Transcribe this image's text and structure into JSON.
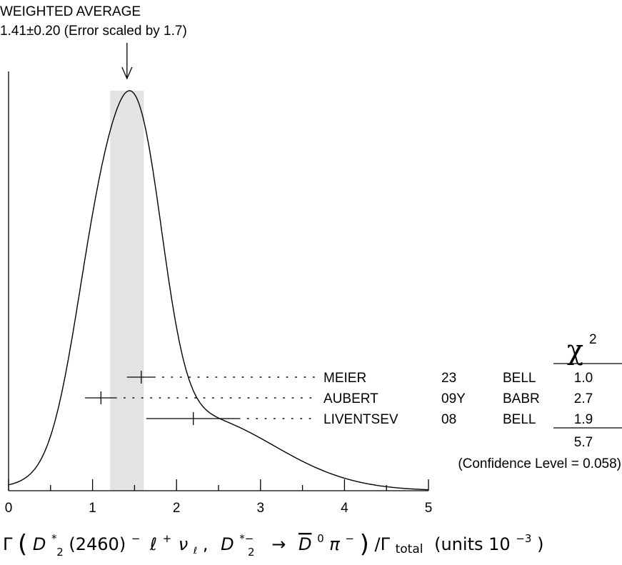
{
  "chart_data": {
    "type": "ideogram",
    "title": "WEIGHTED AVERAGE",
    "subtitle": "1.41±0.20 (Error scaled by 1.7)",
    "average": {
      "value": 1.41,
      "error": 0.2,
      "scale_factor": 1.7
    },
    "band": [
      1.21,
      1.61
    ],
    "xlim": [
      0,
      5
    ],
    "ticks": [
      0,
      1,
      2,
      3,
      4,
      5
    ],
    "tick_labels": [
      "0",
      "1",
      "2",
      "3",
      "4",
      "5"
    ],
    "xlabel": {
      "prefix": "Γ",
      "d2star": "D",
      "sub2": "2",
      "sup_star": "*",
      "mass": "(2460)",
      "minus": "−",
      "ell": "ℓ",
      "plus": "+",
      "nu": "ν",
      "sub_ell": "ℓ",
      "comma": ",",
      "d2star_b": "D",
      "sub2_b": "2",
      "sup_b": "*−",
      "arrow": "→",
      "dbar": "D",
      "sup0": "0",
      "pi": "π",
      "sup_minus": "−",
      "slash": "/Γ",
      "total": "total",
      "units": "(units 10",
      "units_exp": "−3",
      "units_close": ")"
    },
    "chi2_header": "χ",
    "chi2_sup": "2",
    "measurements": [
      {
        "author": "MEIER",
        "year": "23",
        "experiment": "BELL",
        "value": 1.58,
        "error": 0.17,
        "chi2": "1.0"
      },
      {
        "author": "AUBERT",
        "year": "09Y",
        "experiment": "BABR",
        "value": 1.1,
        "error": 0.19,
        "chi2": "2.7"
      },
      {
        "author": "LIVENTSEV",
        "year": "08",
        "experiment": "BELL",
        "value": 2.2,
        "error": 0.56,
        "chi2": "1.9"
      }
    ],
    "chi2_total": "5.7",
    "confidence_level": "(Confidence Level = 0.058)"
  }
}
